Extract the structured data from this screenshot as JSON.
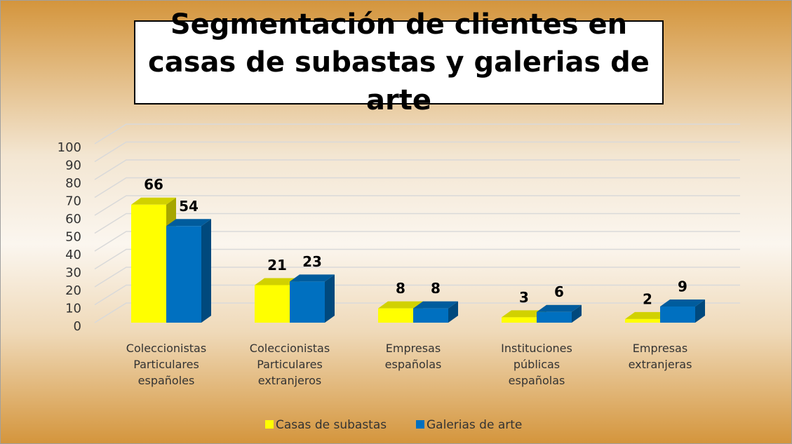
{
  "chart_data": {
    "type": "bar3d",
    "title": "Segmentación de clientes en casas de subastas y galerias de arte",
    "categories": [
      "Coleccionistas Particulares españoles",
      "Coleccionistas Particulares extranjeros",
      "Empresas españolas",
      "Instituciones públicas españolas",
      "Empresas extranjeras"
    ],
    "series": [
      {
        "name": "Casas de subastas",
        "color": "#ffff00",
        "values": [
          66,
          21,
          8,
          3,
          2
        ]
      },
      {
        "name": "Galerias de arte",
        "color": "#0070c0",
        "values": [
          54,
          23,
          8,
          6,
          9
        ]
      }
    ],
    "ylim": [
      0,
      100
    ],
    "yticks": [
      0,
      10,
      20,
      30,
      40,
      50,
      60,
      70,
      80,
      90,
      100
    ],
    "grid": true,
    "legend": "bottom"
  }
}
